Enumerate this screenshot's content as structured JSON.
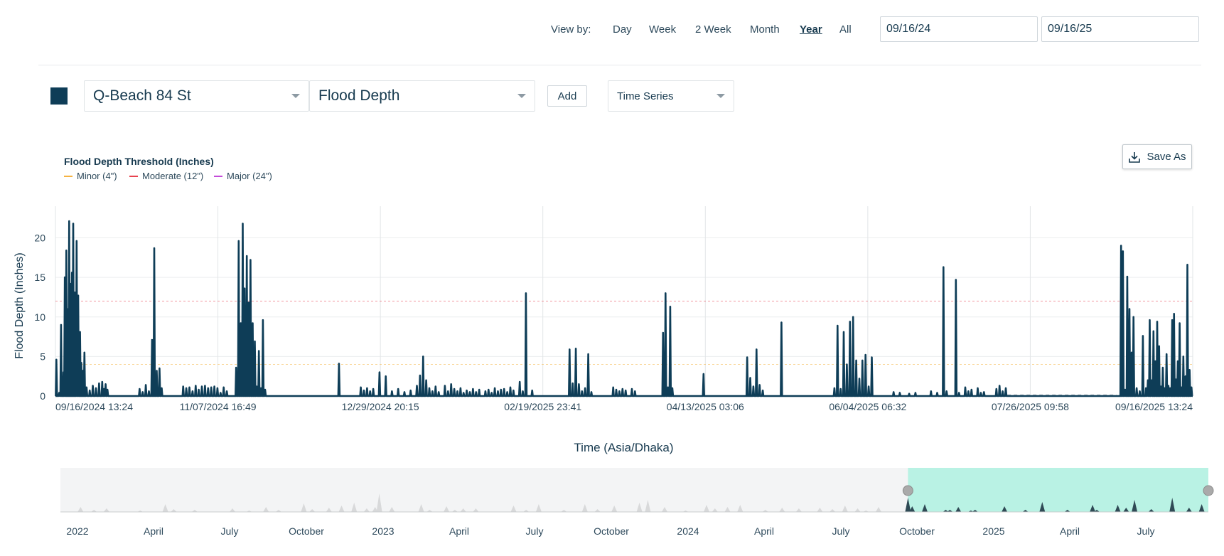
{
  "toolbar": {
    "view_by_label": "View by:",
    "view_options": [
      {
        "label": "Day",
        "active": false
      },
      {
        "label": "Week",
        "active": false
      },
      {
        "label": "2 Week",
        "active": false
      },
      {
        "label": "Month",
        "active": false
      },
      {
        "label": "Year",
        "active": true
      },
      {
        "label": "All",
        "active": false
      }
    ],
    "start_date": "09/16/24",
    "end_date": "09/16/25"
  },
  "controls": {
    "series_color": "#0e3d57",
    "location": "Q-Beach 84 St",
    "metric": "Flood Depth",
    "add_label": "Add",
    "chart_type": "Time Series",
    "save_label": "Save As"
  },
  "legend": {
    "title": "Flood Depth Threshold (Inches)",
    "items": [
      {
        "label": "Minor (4\")",
        "color": "#f5b342"
      },
      {
        "label": "Moderate (12\")",
        "color": "#e8434f"
      },
      {
        "label": "Major (24\")",
        "color": "#c44bd9"
      }
    ]
  },
  "chart_data": {
    "type": "line",
    "xlabel": "Time (Asia/Dhaka)",
    "ylabel": "Flood Depth (Inches)",
    "ylim": [
      0,
      24
    ],
    "yticks": [
      0,
      5,
      10,
      15,
      20
    ],
    "x_range_days": [
      0,
      365
    ],
    "xtick_labels": [
      "09/16/2024 13:24",
      "11/07/2024 16:49",
      "12/29/2024 20:15",
      "02/19/2025 23:41",
      "04/13/2025 03:06",
      "06/04/2025 06:32",
      "07/26/2025 09:58",
      "09/16/2025 13:24"
    ],
    "thresholds": [
      {
        "name": "Minor",
        "value": 4,
        "color": "#f5b342"
      },
      {
        "name": "Moderate",
        "value": 12,
        "color": "#e8434f"
      }
    ],
    "series_color": "#0e3d57",
    "spikes": [
      [
        0.3,
        4.6
      ],
      [
        1.2,
        0.4
      ],
      [
        1.8,
        9.0
      ],
      [
        2.6,
        3.0
      ],
      [
        3.0,
        15.0
      ],
      [
        3.5,
        18.4
      ],
      [
        4.1,
        11.0
      ],
      [
        4.4,
        22.1
      ],
      [
        5.0,
        14.2
      ],
      [
        5.3,
        15.6
      ],
      [
        5.7,
        21.8
      ],
      [
        6.2,
        13.1
      ],
      [
        6.8,
        19.6
      ],
      [
        7.3,
        12.7
      ],
      [
        7.9,
        8.1
      ],
      [
        8.3,
        4.2
      ],
      [
        8.8,
        3.2
      ],
      [
        9.3,
        5.5
      ],
      [
        10.0,
        1.1
      ],
      [
        11.0,
        0.7
      ],
      [
        12.0,
        1.3
      ],
      [
        13.0,
        1.0
      ],
      [
        14.0,
        1.6
      ],
      [
        15.0,
        1.8
      ],
      [
        15.6,
        0.9
      ],
      [
        16.1,
        1.5
      ],
      [
        16.7,
        0.8
      ],
      [
        27.0,
        0.9
      ],
      [
        28.0,
        0.5
      ],
      [
        29.0,
        1.4
      ],
      [
        30.0,
        0.6
      ],
      [
        31.0,
        7.1
      ],
      [
        31.7,
        18.7
      ],
      [
        32.5,
        3.2
      ],
      [
        33.4,
        3.5
      ],
      [
        34.1,
        1.0
      ],
      [
        41.0,
        1.2
      ],
      [
        42.0,
        1.0
      ],
      [
        43.0,
        1.1
      ],
      [
        44.0,
        0.6
      ],
      [
        45.0,
        1.3
      ],
      [
        46.0,
        0.8
      ],
      [
        47.0,
        1.2
      ],
      [
        48.0,
        1.3
      ],
      [
        49.0,
        1.0
      ],
      [
        50.0,
        1.1
      ],
      [
        51.0,
        1.2
      ],
      [
        52.0,
        1.0
      ],
      [
        53.0,
        0.4
      ],
      [
        54.0,
        1.1
      ],
      [
        55.0,
        0.6
      ],
      [
        58.0,
        3.6
      ],
      [
        58.8,
        19.6
      ],
      [
        59.5,
        9.2
      ],
      [
        60.1,
        21.8
      ],
      [
        60.7,
        13.6
      ],
      [
        61.4,
        17.7
      ],
      [
        62.0,
        11.8
      ],
      [
        62.6,
        17.2
      ],
      [
        63.3,
        9.2
      ],
      [
        64.0,
        6.9
      ],
      [
        64.6,
        1.2
      ],
      [
        65.3,
        5.7
      ],
      [
        66.0,
        1.0
      ],
      [
        66.6,
        9.6
      ],
      [
        67.3,
        0.8
      ],
      [
        91.0,
        4.1
      ],
      [
        98.0,
        1.1
      ],
      [
        99.0,
        0.7
      ],
      [
        100.0,
        1.0
      ],
      [
        101.0,
        0.6
      ],
      [
        102.0,
        0.9
      ],
      [
        104.0,
        3.0
      ],
      [
        106.0,
        2.5
      ],
      [
        108.0,
        0.6
      ],
      [
        110.0,
        0.9
      ],
      [
        112.0,
        0.5
      ],
      [
        114.0,
        0.7
      ],
      [
        116.0,
        1.3
      ],
      [
        117.0,
        2.6
      ],
      [
        118.0,
        5.0
      ],
      [
        119.0,
        2.0
      ],
      [
        120.0,
        1.0
      ],
      [
        121.0,
        0.6
      ],
      [
        122.0,
        1.2
      ],
      [
        123.0,
        0.5
      ],
      [
        125.0,
        1.3
      ],
      [
        126.0,
        0.6
      ],
      [
        127.0,
        1.5
      ],
      [
        128.0,
        0.9
      ],
      [
        129.0,
        0.6
      ],
      [
        130.0,
        1.0
      ],
      [
        131.0,
        0.4
      ],
      [
        132.0,
        0.7
      ],
      [
        133.0,
        0.5
      ],
      [
        134.0,
        0.9
      ],
      [
        135.0,
        0.5
      ],
      [
        136.0,
        0.8
      ],
      [
        138.0,
        0.6
      ],
      [
        139.0,
        0.8
      ],
      [
        140.0,
        0.4
      ],
      [
        141.0,
        1.0
      ],
      [
        142.0,
        0.6
      ],
      [
        143.0,
        0.8
      ],
      [
        144.0,
        0.9
      ],
      [
        145.0,
        0.5
      ],
      [
        146.0,
        1.1
      ],
      [
        147.0,
        0.7
      ],
      [
        149.0,
        1.8
      ],
      [
        150.0,
        0.6
      ],
      [
        151.0,
        13.0
      ],
      [
        153.0,
        0.7
      ],
      [
        165.0,
        5.9
      ],
      [
        166.0,
        1.6
      ],
      [
        167.0,
        6.0
      ],
      [
        168.0,
        1.5
      ],
      [
        169.0,
        0.6
      ],
      [
        170.0,
        1.0
      ],
      [
        171.0,
        5.3
      ],
      [
        172.0,
        0.5
      ],
      [
        179.0,
        1.1
      ],
      [
        180.0,
        0.8
      ],
      [
        181.0,
        0.6
      ],
      [
        182.0,
        0.9
      ],
      [
        183.0,
        0.7
      ],
      [
        185.0,
        0.9
      ],
      [
        186.0,
        0.6
      ],
      [
        195.0,
        8.0
      ],
      [
        195.8,
        13.0
      ],
      [
        196.6,
        1.1
      ],
      [
        197.3,
        11.3
      ],
      [
        198.0,
        1.0
      ],
      [
        208.0,
        2.8
      ],
      [
        222.0,
        4.9
      ],
      [
        223.0,
        2.3
      ],
      [
        224.0,
        1.2
      ],
      [
        225.0,
        5.9
      ],
      [
        226.0,
        1.4
      ],
      [
        227.0,
        0.7
      ],
      [
        233.0,
        9.3
      ],
      [
        250.0,
        1.0
      ],
      [
        251.0,
        8.9
      ],
      [
        252.0,
        0.9
      ],
      [
        253.0,
        8.1
      ],
      [
        254.0,
        4.0
      ],
      [
        255.0,
        9.4
      ],
      [
        256.0,
        10.0
      ],
      [
        257.0,
        4.5
      ],
      [
        258.0,
        2.2
      ],
      [
        259.0,
        4.5
      ],
      [
        260.0,
        5.2
      ],
      [
        261.0,
        1.2
      ],
      [
        262.0,
        4.9
      ],
      [
        269.0,
        0.5
      ],
      [
        271.0,
        0.4
      ],
      [
        274.0,
        0.3
      ],
      [
        276.0,
        0.4
      ],
      [
        281.0,
        0.6
      ],
      [
        283.0,
        0.4
      ],
      [
        285.0,
        16.3
      ],
      [
        286.0,
        0.6
      ],
      [
        289.0,
        14.7
      ],
      [
        290.0,
        0.4
      ],
      [
        292.0,
        1.1
      ],
      [
        293.0,
        0.6
      ],
      [
        294.0,
        0.8
      ],
      [
        296.0,
        1.0
      ],
      [
        297.0,
        0.4
      ],
      [
        298.0,
        0.5
      ],
      [
        302.0,
        0.9
      ],
      [
        303.0,
        1.3
      ],
      [
        304.0,
        0.6
      ],
      [
        305.0,
        1.0
      ],
      [
        342.0,
        19.0
      ],
      [
        342.6,
        18.3
      ],
      [
        343.3,
        0.8
      ],
      [
        344.0,
        15.1
      ],
      [
        344.7,
        11.0
      ],
      [
        345.4,
        5.5
      ],
      [
        346.0,
        10.0
      ],
      [
        347.0,
        1.0
      ],
      [
        348.0,
        0.6
      ],
      [
        349.0,
        7.6
      ],
      [
        350.0,
        1.0
      ],
      [
        350.6,
        2.0
      ],
      [
        351.2,
        9.6
      ],
      [
        351.8,
        2.0
      ],
      [
        352.4,
        8.2
      ],
      [
        353.0,
        4.4
      ],
      [
        353.6,
        9.4
      ],
      [
        354.2,
        6.3
      ],
      [
        354.8,
        1.2
      ],
      [
        355.4,
        3.6
      ],
      [
        356.0,
        1.0
      ],
      [
        356.6,
        5.3
      ],
      [
        357.2,
        1.3
      ],
      [
        357.8,
        1.0
      ],
      [
        358.4,
        9.6
      ],
      [
        359.0,
        10.4
      ],
      [
        359.6,
        2.1
      ],
      [
        360.2,
        4.4
      ],
      [
        360.8,
        9.2
      ],
      [
        361.4,
        1.1
      ],
      [
        362.0,
        5.0
      ],
      [
        362.7,
        2.5
      ],
      [
        363.3,
        16.6
      ],
      [
        364.0,
        3.3
      ],
      [
        364.6,
        1.1
      ]
    ],
    "gap_days": [
      [
        305.5,
        340.5
      ]
    ]
  },
  "navigator": {
    "labels": [
      "2022",
      "April",
      "July",
      "October",
      "2023",
      "April",
      "July",
      "October",
      "2024",
      "April",
      "July",
      "October",
      "2025",
      "April",
      "July"
    ],
    "selection_color": "#b9f2e4",
    "range_days": [
      0,
      1368
    ],
    "selection_start_day": 1010,
    "spikes": [
      [
        24,
        7
      ],
      [
        40,
        3
      ],
      [
        55,
        5
      ],
      [
        95,
        2
      ],
      [
        125,
        11
      ],
      [
        135,
        4
      ],
      [
        160,
        3
      ],
      [
        205,
        5
      ],
      [
        225,
        2
      ],
      [
        245,
        7
      ],
      [
        260,
        3
      ],
      [
        290,
        12
      ],
      [
        300,
        4
      ],
      [
        320,
        6
      ],
      [
        335,
        9
      ],
      [
        350,
        13
      ],
      [
        365,
        5
      ],
      [
        375,
        7
      ],
      [
        380,
        26
      ],
      [
        395,
        7
      ],
      [
        430,
        11
      ],
      [
        440,
        3
      ],
      [
        460,
        8
      ],
      [
        470,
        3
      ],
      [
        480,
        5
      ],
      [
        495,
        5
      ],
      [
        540,
        9
      ],
      [
        555,
        3
      ],
      [
        570,
        11
      ],
      [
        600,
        3
      ],
      [
        625,
        11
      ],
      [
        640,
        4
      ],
      [
        660,
        9
      ],
      [
        690,
        13
      ],
      [
        700,
        17
      ],
      [
        720,
        7
      ],
      [
        745,
        2
      ],
      [
        770,
        10
      ],
      [
        780,
        5
      ],
      [
        795,
        7
      ],
      [
        810,
        10
      ],
      [
        840,
        3
      ],
      [
        860,
        6
      ],
      [
        880,
        5
      ],
      [
        905,
        6
      ],
      [
        920,
        4
      ],
      [
        935,
        9
      ],
      [
        950,
        5
      ],
      [
        960,
        2
      ],
      [
        975,
        7
      ],
      [
        1010,
        20
      ],
      [
        1015,
        8
      ],
      [
        1030,
        11
      ],
      [
        1055,
        3
      ],
      [
        1060,
        3
      ],
      [
        1070,
        7
      ],
      [
        1085,
        2
      ],
      [
        1090,
        3
      ],
      [
        1125,
        8
      ],
      [
        1150,
        3
      ],
      [
        1170,
        14
      ],
      [
        1200,
        3
      ],
      [
        1230,
        10
      ],
      [
        1235,
        3
      ],
      [
        1260,
        10
      ],
      [
        1270,
        6
      ],
      [
        1280,
        17
      ],
      [
        1300,
        4
      ],
      [
        1325,
        20
      ],
      [
        1345,
        6
      ],
      [
        1360,
        11
      ]
    ]
  }
}
